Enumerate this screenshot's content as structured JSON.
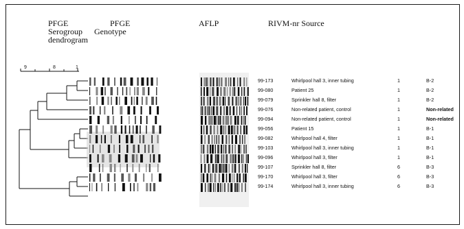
{
  "headers": {
    "pfge_serogroup": "PFGE",
    "serogroup": "Serogroup",
    "dendrogram": "dendrogram",
    "pfge_genotype": "PFGE",
    "genotype": "Genotype",
    "aflp": "AFLP",
    "rivm_source": "RIVM-nr  Source"
  },
  "scale_labels": [
    "9",
    "8",
    "1"
  ],
  "rows": [
    {
      "id": "99-173",
      "source": "Whirlpool hall 3, inner tubing",
      "serogroup": "1",
      "type": "B-2"
    },
    {
      "id": "99-080",
      "source": "Patient 25",
      "serogroup": "1",
      "type": "B-2"
    },
    {
      "id": "99-079",
      "source": "Sprinkler hall 8, filter",
      "serogroup": "1",
      "type": "B-2"
    },
    {
      "id": "99-076",
      "source": "Non-related patient, control",
      "serogroup": "1",
      "type": "Non-related"
    },
    {
      "id": "99-094",
      "source": "Non-related patient, control",
      "serogroup": "1",
      "type": "Non-related"
    },
    {
      "id": "99-056",
      "source": "Patient 15",
      "serogroup": "1",
      "type": "B-1"
    },
    {
      "id": "99-082",
      "source": "Whirlpool hall 4, filter",
      "serogroup": "1",
      "type": "B-1"
    },
    {
      "id": "99-103",
      "source": "Whirlpool hall 3, inner tubing",
      "serogroup": "1",
      "type": "B-1"
    },
    {
      "id": "99-096",
      "source": "Whirlpool hall 3, filter",
      "serogroup": "1",
      "type": "B-1"
    },
    {
      "id": "99-107",
      "source": "Sprinkler hall 8, filter",
      "serogroup": "6",
      "type": "B-3"
    },
    {
      "id": "99-170",
      "source": "Whirlpool hall 3, filter",
      "serogroup": "6",
      "type": "B-3"
    },
    {
      "id": "99-174",
      "source": "Whirlpool hall 3, inner tubing",
      "serogroup": "6",
      "type": "B-3"
    }
  ]
}
